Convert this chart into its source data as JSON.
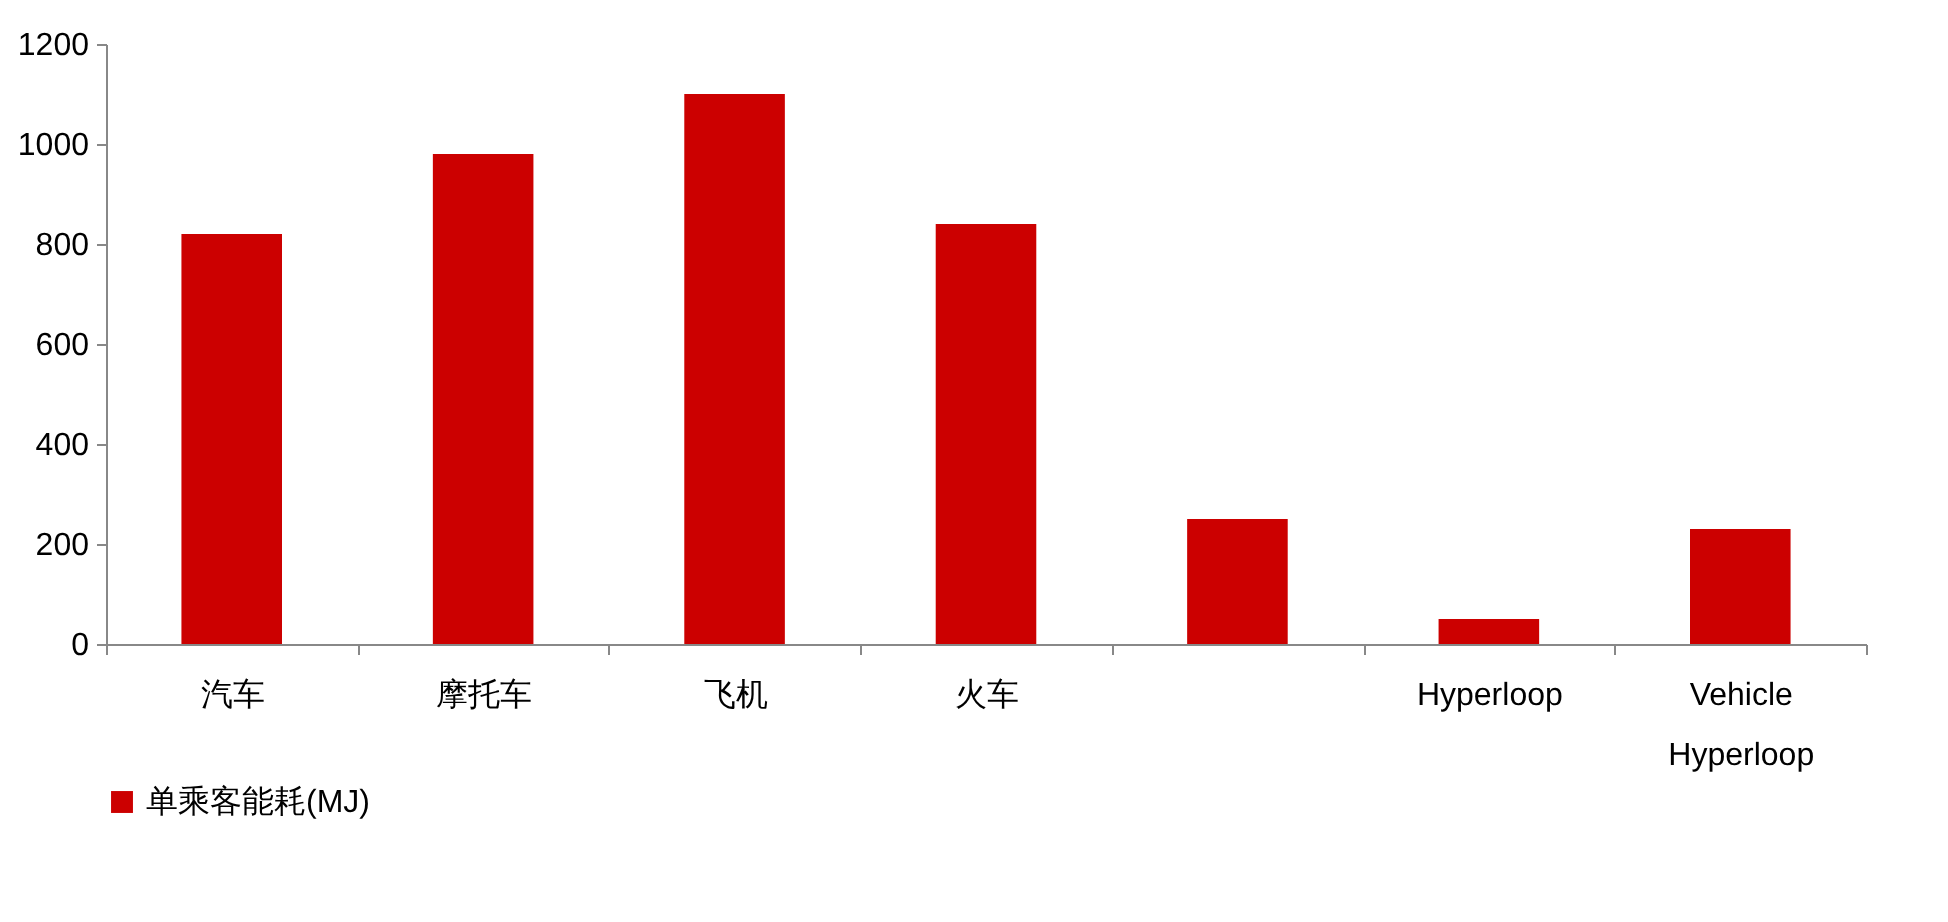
{
  "chart_data": {
    "type": "bar",
    "categories": [
      "汽车",
      "摩托车",
      "飞机",
      "火车",
      null,
      "Hyperloop",
      "Vehicle Hyperloop"
    ],
    "series": [
      {
        "name": "单乘客能耗(MJ)",
        "color": "#cc0000",
        "values": [
          820,
          980,
          1100,
          840,
          250,
          50,
          230
        ]
      }
    ],
    "ylim": [
      0,
      1200
    ],
    "yticks": [
      0,
      200,
      400,
      600,
      800,
      1000,
      1200
    ],
    "grid": false,
    "legend": "bottom"
  }
}
